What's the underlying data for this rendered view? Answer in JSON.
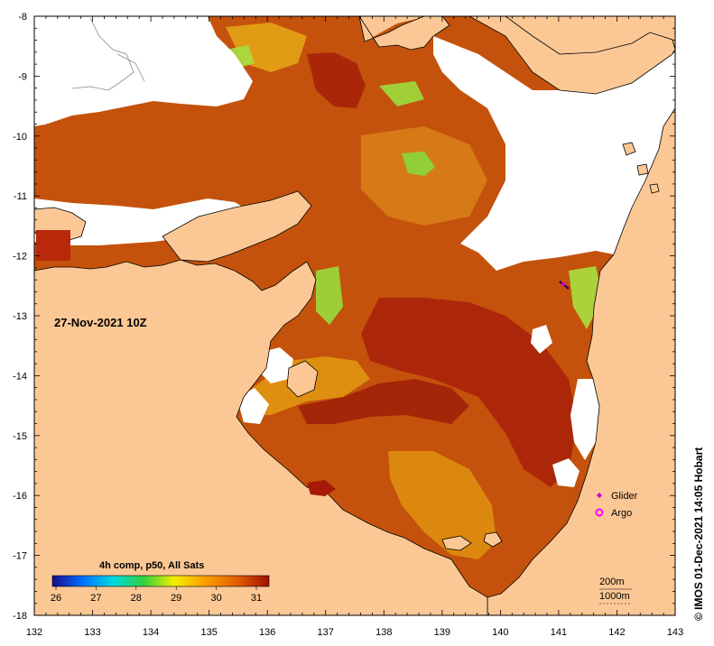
{
  "map": {
    "date_label": "27-Nov-2021 10Z",
    "credit": "© IMOS 01-Dec-2021 14:05 Hobart",
    "x_ticks": [
      "132",
      "133",
      "134",
      "135",
      "136",
      "137",
      "138",
      "139",
      "140",
      "141",
      "142",
      "143"
    ],
    "y_ticks": [
      "-8",
      "-9",
      "-10",
      "-11",
      "-12",
      "-13",
      "-14",
      "-15",
      "-16",
      "-17",
      "-18"
    ],
    "legend": [
      {
        "label": "Glider",
        "color": "#cc00cc",
        "icon": "diamond-icon"
      },
      {
        "label": "Argo",
        "color": "#ff00ff",
        "icon": "ring-icon"
      }
    ],
    "colorbar": {
      "title": "4h comp, p50, All Sats",
      "ticks": [
        "26",
        "27",
        "28",
        "29",
        "30",
        "31"
      ],
      "colors": [
        "#1a0a8c",
        "#0070ff",
        "#00d8e0",
        "#30d040",
        "#f0f000",
        "#ffa000",
        "#e06000",
        "#a01000"
      ]
    },
    "contour_labels": [
      "200m",
      "1000m"
    ],
    "colors": {
      "land": "#fbc895",
      "no_data": "#ffffff",
      "sst_warm": "#b83c08",
      "sst_hot": "#a01808",
      "sst_mid": "#d66a10",
      "sst_cool": "#e8a818",
      "sst_green": "#88d838"
    }
  }
}
